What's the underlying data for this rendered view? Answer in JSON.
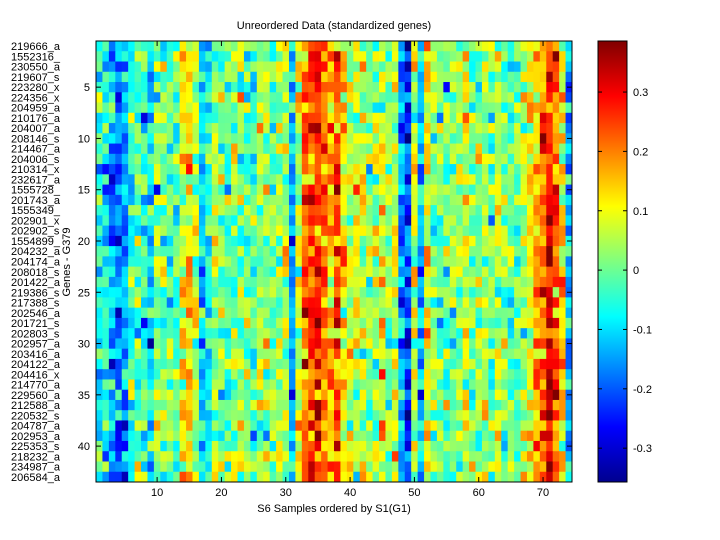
{
  "chart_data": {
    "type": "heatmap",
    "title": "Unreordered Data (standardized genes)",
    "xlabel": "S6 Samples ordered by S1(G1)",
    "ylabel": "Genes - G379",
    "n_columns": 74,
    "xticks": [
      10,
      20,
      30,
      40,
      50,
      60,
      70
    ],
    "yticks": [
      5,
      10,
      15,
      20,
      25,
      30,
      35,
      40
    ],
    "row_labels": [
      "219666_a",
      "1552316_",
      "230550_a",
      "219607_s",
      "223280_x",
      "224356_x",
      "204959_a",
      "210176_a",
      "204007_a",
      "208146_s",
      "214467_a",
      "204006_s",
      "210314_x",
      "232617_a",
      "1555728_",
      "201743_a",
      "1555349_",
      "202901_x",
      "202902_s",
      "1554899_",
      "204232_a",
      "204174_a",
      "208018_s",
      "201422_a",
      "219386_s",
      "217388_s",
      "202546_a",
      "201721_s",
      "202803_s",
      "202957_a",
      "203416_a",
      "204122_a",
      "204416_x",
      "214770_a",
      "229560_a",
      "212588_a",
      "220532_s",
      "204787_a",
      "202953_a",
      "225353_s",
      "218232_a",
      "234987_a",
      "206584_a"
    ],
    "column_mean_profile": [
      -0.05,
      -0.08,
      -0.15,
      -0.2,
      -0.15,
      -0.05,
      -0.03,
      -0.05,
      -0.08,
      0,
      0.02,
      -0.02,
      0,
      0.1,
      0.12,
      0.05,
      -0.1,
      -0.08,
      0.02,
      0,
      -0.02,
      0.03,
      0.05,
      0,
      -0.03,
      0.05,
      0.03,
      0,
      0.02,
      0.05,
      -0.12,
      0.05,
      0.2,
      0.22,
      0.3,
      0.22,
      0.15,
      0.25,
      0.12,
      0.05,
      0.05,
      0.08,
      0.03,
      0.05,
      0.1,
      0.03,
      0.05,
      -0.15,
      -0.25,
      0.05,
      -0.12,
      0.1,
      0.02,
      0,
      -0.02,
      0,
      0.03,
      0.08,
      0,
      0.02,
      0.05,
      0,
      0.05,
      0.02,
      0,
      -0.02,
      0.05,
      0.1,
      0.15,
      0.22,
      0.28,
      0.22,
      0.12,
      -0.1
    ],
    "noise_sd": 0.07,
    "colorbar": {
      "colormap": "jet",
      "range": [
        -0.357,
        0.386
      ],
      "ticks": [
        -0.3,
        -0.2,
        -0.1,
        0,
        0.1,
        0.2,
        0.3
      ],
      "tick_labels": [
        "-0.3",
        "-0.2",
        "-0.1",
        "0",
        "0.1",
        "0.2",
        "0.3"
      ]
    }
  }
}
